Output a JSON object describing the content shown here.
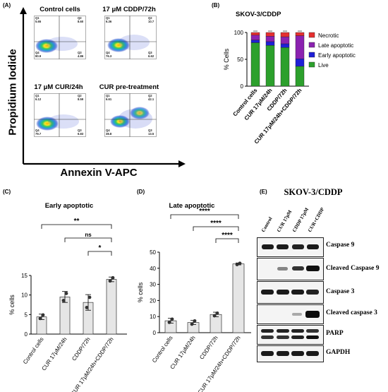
{
  "panels": {
    "A": "(A)",
    "B": "(B)",
    "C": "(C)",
    "D": "(D)",
    "E": "(E)"
  },
  "flow": {
    "ylabel": "Propidium Iodide",
    "xlabel": "Annexin V-APC",
    "plots": [
      {
        "title": "Control cells",
        "q1": "Q1",
        "q1v": "5.65",
        "q2": "Q2",
        "q2v": "8.60",
        "q3": "Q3",
        "q3v": "4.86",
        "q4": "Q4",
        "q4v": "80.9"
      },
      {
        "title": "17 μM CDDP/72h",
        "q1": "Q1",
        "q1v": "6.36",
        "q2": "Q2",
        "q2v": "10.7",
        "q3": "Q3",
        "q3v": "6.62",
        "q4": "Q4",
        "q4v": "76.3"
      },
      {
        "title": "17 μM CUR/24h",
        "q1": "Q1",
        "q1v": "6.12",
        "q2": "Q2",
        "q2v": "8.59",
        "q3": "Q3",
        "q3v": "6.83",
        "q4": "Q4",
        "q4v": "79.7"
      },
      {
        "title": "CUR pre-treatment",
        "q1": "Q1",
        "q1v": "6.61",
        "q2": "Q2",
        "q2v": "42.1",
        "q3": "Q3",
        "q3v": "13.5",
        "q4": "Q4",
        "q4v": "38.8"
      }
    ]
  },
  "chart_data": [
    {
      "type": "bar",
      "title": "SKOV-3/CDDP",
      "ylabel": "% Cells",
      "xlabel": "",
      "ylim": [
        0,
        100
      ],
      "yticks": [
        "0",
        "50",
        "100"
      ],
      "stacked": true,
      "categories": [
        "Control cells",
        "CUR 17μM/24h",
        "CDDP/72h",
        "CUR 17μM/24h+CDDP/72h"
      ],
      "series": [
        {
          "name": "Live",
          "color": "#2ca02c",
          "values": [
            81,
            76,
            72,
            37
          ]
        },
        {
          "name": "Early apoptotic",
          "color": "#1f1fd6",
          "values": [
            5,
            7,
            7,
            14
          ]
        },
        {
          "name": "Late apoptotic",
          "color": "#8b22b0",
          "values": [
            9,
            10,
            13,
            43
          ]
        },
        {
          "name": "Necrotic",
          "color": "#e53030",
          "values": [
            5,
            7,
            8,
            6
          ]
        }
      ],
      "legend": "right"
    },
    {
      "type": "bar",
      "title": "Early apoptotic",
      "ylabel": "% cells",
      "xlabel": "",
      "ylim": [
        0,
        15
      ],
      "yticks": [
        "0",
        "5",
        "10",
        "15"
      ],
      "categories": [
        "Control cells",
        "CUR 17μM/24h",
        "CDDP/72h",
        "CUR 17μM/24h+CDDP/72h"
      ],
      "values": [
        4.4,
        9.5,
        8.1,
        14.0
      ],
      "errors": [
        0.7,
        1.4,
        2.0,
        0.6
      ],
      "points": [
        [
          4.0,
          4.9
        ],
        [
          8.6,
          10.4
        ],
        [
          6.8,
          9.4
        ],
        [
          13.6,
          14.4
        ]
      ],
      "significance": [
        {
          "from": 0,
          "to": 3,
          "label": "**"
        },
        {
          "from": 1,
          "to": 3,
          "label": "ns"
        },
        {
          "from": 2,
          "to": 3,
          "label": "*"
        }
      ]
    },
    {
      "type": "bar",
      "title": "Late apoptotic",
      "ylabel": "% cells",
      "xlabel": "",
      "ylim": [
        0,
        50
      ],
      "yticks": [
        "0",
        "10",
        "20",
        "30",
        "40",
        "50"
      ],
      "categories": [
        "Control cells",
        "CUR 17μM/24h",
        "CDDP/72h",
        "CUR 17μM/24h+CDDP/72h"
      ],
      "values": [
        7.4,
        6.3,
        11.3,
        42.7
      ],
      "errors": [
        1.5,
        1.3,
        1.4,
        0.6
      ],
      "points": [
        [
          6.4,
          8.4
        ],
        [
          5.3,
          7.3
        ],
        [
          10.5,
          12.1
        ],
        [
          42.3,
          43.1
        ]
      ],
      "significance": [
        {
          "from": 0,
          "to": 3,
          "label": "****"
        },
        {
          "from": 1,
          "to": 3,
          "label": "****"
        },
        {
          "from": 2,
          "to": 3,
          "label": "****"
        }
      ]
    }
  ],
  "western": {
    "title": "SKOV-3/CDDP",
    "lanes": [
      "Control",
      "CUR 17μM",
      "CDDP 17μM",
      "CUR+CDDP"
    ],
    "proteins": [
      "Caspase 9",
      "Cleaved Caspase 9",
      "Caspase 3",
      "Cleaved caspase 3",
      "PARP",
      "GAPDH"
    ]
  }
}
